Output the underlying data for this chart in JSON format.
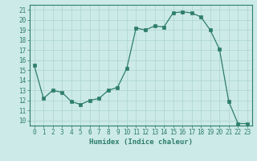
{
  "x": [
    0,
    1,
    2,
    3,
    4,
    5,
    6,
    7,
    8,
    9,
    10,
    11,
    12,
    13,
    14,
    15,
    16,
    17,
    18,
    19,
    20,
    21,
    22,
    23
  ],
  "y": [
    15.5,
    12.2,
    13.0,
    12.8,
    11.9,
    11.6,
    12.0,
    12.2,
    13.0,
    13.3,
    15.2,
    19.2,
    19.0,
    19.4,
    19.3,
    20.7,
    20.8,
    20.7,
    20.3,
    19.0,
    17.1,
    11.9,
    9.7,
    9.7
  ],
  "line_color": "#2e7d6e",
  "marker": "s",
  "marker_size": 2.5,
  "bg_color": "#cceae8",
  "grid_color": "#b0d8d4",
  "xlabel": "Humidex (Indice chaleur)",
  "xlim": [
    -0.5,
    23.5
  ],
  "ylim": [
    9.5,
    21.5
  ],
  "yticks": [
    10,
    11,
    12,
    13,
    14,
    15,
    16,
    17,
    18,
    19,
    20,
    21
  ],
  "xticks": [
    0,
    1,
    2,
    3,
    4,
    5,
    6,
    7,
    8,
    9,
    10,
    11,
    12,
    13,
    14,
    15,
    16,
    17,
    18,
    19,
    20,
    21,
    22,
    23
  ],
  "tick_color": "#2e7d6e",
  "label_fontsize": 5.5,
  "axis_fontsize": 6.5
}
